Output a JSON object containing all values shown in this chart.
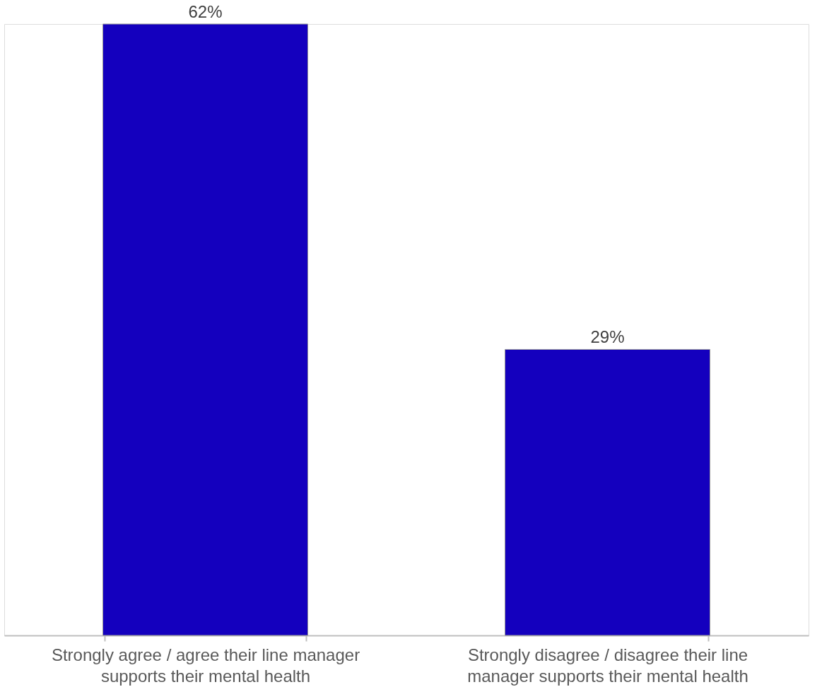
{
  "chart_data": {
    "type": "bar",
    "categories": [
      "Strongly agree / agree their line manager supports their mental health",
      "Strongly disagree / disagree their line manager supports their mental health"
    ],
    "values": [
      62,
      29
    ],
    "value_labels": [
      "62%",
      "29%"
    ],
    "color": "#1400be",
    "grid": false
  }
}
